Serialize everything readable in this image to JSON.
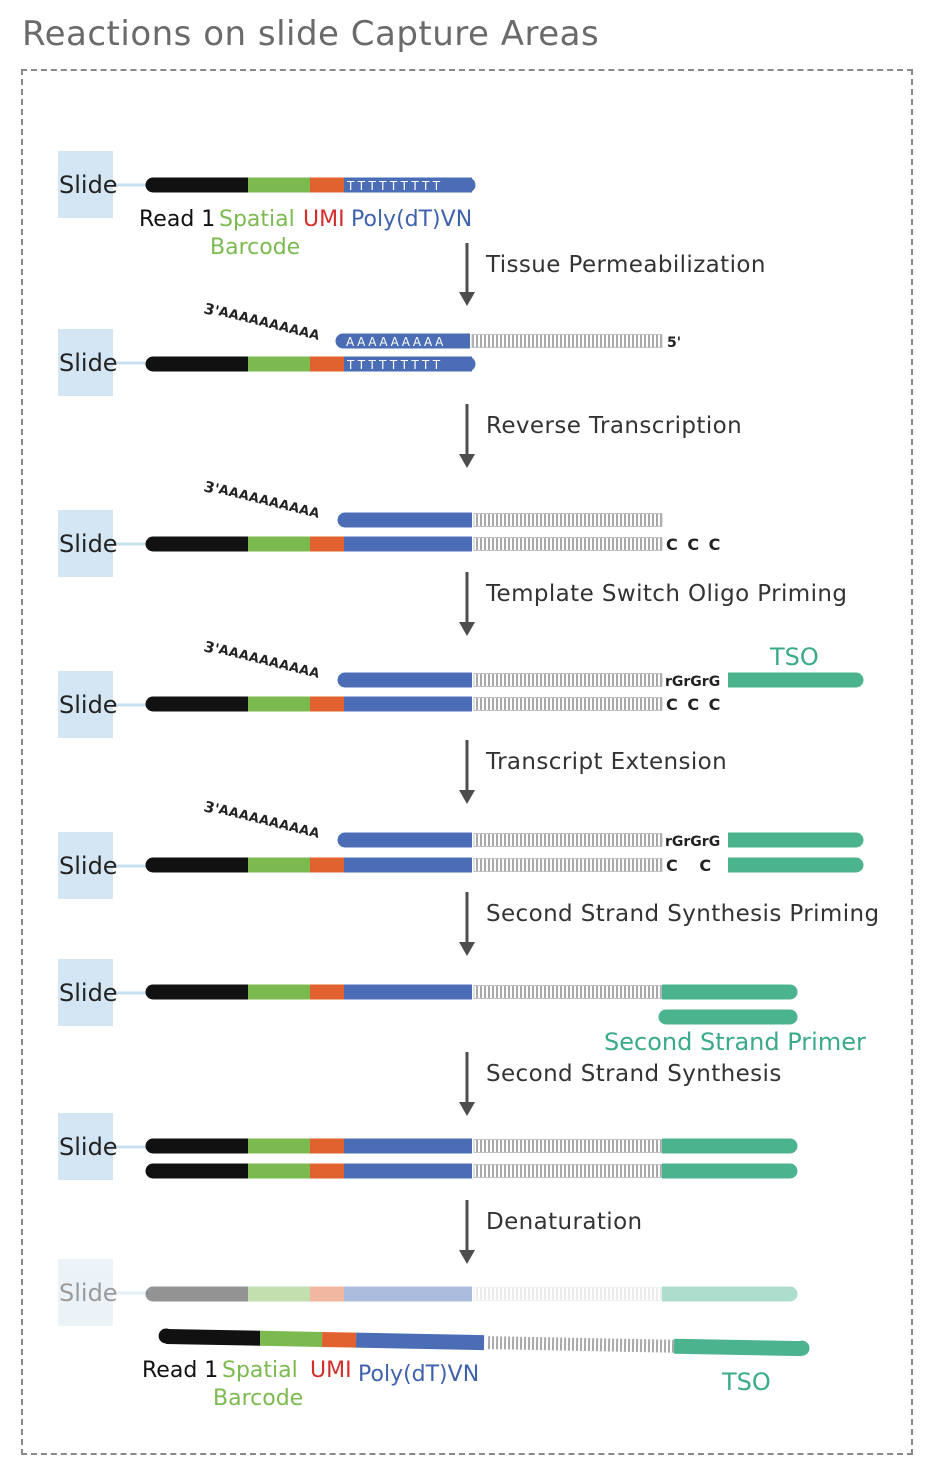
{
  "title": "Reactions on slide Capture Areas",
  "colors": {
    "read1": "#111111",
    "barcode": "#7cba4f",
    "umi": "#e2622f",
    "polydt": "#4a6db5",
    "tso": "#4bb48f",
    "slide_box": "#d4e6f3",
    "arrow": "#4d4d4d",
    "label_green": "#7cba4f",
    "label_red": "#d42e2a",
    "label_blue": "#3f62ad",
    "label_teal": "#3aaa8a"
  },
  "slide_label": "Slide",
  "labels": {
    "read1": "Read 1",
    "spatial": "Spatial",
    "barcode": "Barcode",
    "umi": "UMI",
    "polydt": "Poly(dT)VN",
    "tso": "TSO",
    "second_strand_primer": "Second Strand Primer",
    "three_prime": "3'",
    "five_prime": "5'",
    "poly_a_tail": "AAAAAAAAAA",
    "poly_a_hybrid": "AAAAAAAAA",
    "poly_t": "TTTTTTTTT",
    "rgrgrg": "rGrGrG",
    "ccc": "C C C"
  },
  "steps": [
    "Tissue Permeabilization",
    "Reverse Transcription",
    "Template Switch Oligo Priming",
    "Transcript Extension",
    "Second Strand Synthesis Priming",
    "Second Strand Synthesis",
    "Denaturation"
  ]
}
